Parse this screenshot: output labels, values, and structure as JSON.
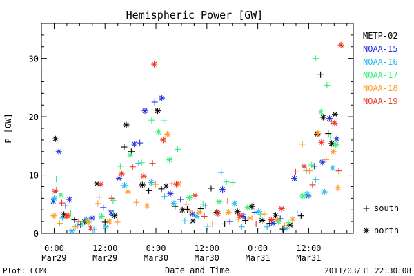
{
  "chart_data": {
    "type": "scatter",
    "title": "Hemispheric Power [GW]",
    "xlabel": "Date and Time",
    "ylabel": "P [GW]",
    "ylim": [
      0,
      36
    ],
    "xlim": [
      "2011-03-28 21:00",
      "2011-03-31 22:30"
    ],
    "y_ticks": [
      0,
      10,
      20,
      30
    ],
    "x_ticks": [
      {
        "top": "0:00",
        "bottom": "Mar29",
        "t": 3
      },
      {
        "top": "12:00",
        "bottom": "Mar29",
        "t": 15
      },
      {
        "top": "0:00",
        "bottom": "Mar30",
        "t": 27
      },
      {
        "top": "12:00",
        "bottom": "Mar30",
        "t": 39
      },
      {
        "top": "0:00",
        "bottom": "Mar31",
        "t": 51
      },
      {
        "top": "12:00",
        "bottom": "Mar31",
        "t": 63
      }
    ],
    "x_units": "hours since 2011-03-28 21:00",
    "grid": false,
    "legend": {
      "placement": "right",
      "satellites": [
        "METP-02",
        "NOAA-15",
        "NOAA-16",
        "NOAA-17",
        "NOAA-18",
        "NOAA-19"
      ],
      "symbols": [
        {
          "marker": "plus",
          "label": "south"
        },
        {
          "marker": "asterisk",
          "label": "north"
        }
      ]
    },
    "series": [
      {
        "name": "METP-02",
        "color": "#000000",
        "points": [
          {
            "x": 3.3,
            "y": 16.2,
            "m": "n"
          },
          {
            "x": 3.6,
            "y": 7.4,
            "m": "s"
          },
          {
            "x": 5.3,
            "y": 3.2,
            "m": "n"
          },
          {
            "x": 7.8,
            "y": 2.3,
            "m": "s"
          },
          {
            "x": 10.2,
            "y": 2.0,
            "m": "n"
          },
          {
            "x": 13.1,
            "y": 8.5,
            "m": "n"
          },
          {
            "x": 15.0,
            "y": 1.9,
            "m": "s"
          },
          {
            "x": 17.2,
            "y": 3.0,
            "m": "n"
          },
          {
            "x": 19.5,
            "y": 14.8,
            "m": "s"
          },
          {
            "x": 20.0,
            "y": 18.6,
            "m": "n"
          },
          {
            "x": 21.2,
            "y": 14.0,
            "m": "s"
          },
          {
            "x": 23.8,
            "y": 8.3,
            "m": "n"
          },
          {
            "x": 25.3,
            "y": 7.3,
            "m": "s"
          },
          {
            "x": 27.4,
            "y": 21.0,
            "m": "n"
          },
          {
            "x": 28.3,
            "y": 7.6,
            "m": "s"
          },
          {
            "x": 29.4,
            "y": 8.1,
            "m": "n"
          },
          {
            "x": 31.5,
            "y": 4.6,
            "m": "s"
          },
          {
            "x": 33.2,
            "y": 4.0,
            "m": "n"
          },
          {
            "x": 34.4,
            "y": 4.1,
            "m": "s"
          },
          {
            "x": 35.7,
            "y": 2.1,
            "m": "n"
          },
          {
            "x": 37.6,
            "y": 4.2,
            "m": "s"
          },
          {
            "x": 40.0,
            "y": 7.7,
            "m": "s"
          },
          {
            "x": 41.3,
            "y": 3.6,
            "m": "n"
          },
          {
            "x": 43.2,
            "y": 1.6,
            "m": "s"
          },
          {
            "x": 46.2,
            "y": 3.7,
            "m": "n"
          },
          {
            "x": 48.1,
            "y": 2.2,
            "m": "s"
          },
          {
            "x": 49.6,
            "y": 4.6,
            "m": "n"
          },
          {
            "x": 52.0,
            "y": 2.2,
            "m": "n"
          },
          {
            "x": 53.8,
            "y": 1.7,
            "m": "s"
          },
          {
            "x": 55.2,
            "y": 3.1,
            "m": "n"
          },
          {
            "x": 56.9,
            "y": 0.7,
            "m": "s"
          },
          {
            "x": 58.6,
            "y": 1.4,
            "m": "n"
          },
          {
            "x": 61.2,
            "y": 3.0,
            "m": "s"
          },
          {
            "x": 62.4,
            "y": 10.8,
            "m": "s"
          },
          {
            "x": 65.0,
            "y": 17.0,
            "m": "n"
          },
          {
            "x": 65.8,
            "y": 27.2,
            "m": "s"
          },
          {
            "x": 66.4,
            "y": 19.9,
            "m": "n"
          },
          {
            "x": 67.6,
            "y": 17.1,
            "m": "s"
          },
          {
            "x": 68.4,
            "y": 15.4,
            "m": "n"
          },
          {
            "x": 69.2,
            "y": 20.4,
            "m": "n"
          }
        ]
      },
      {
        "name": "NOAA-15",
        "color": "#2233dd",
        "points": [
          {
            "x": 2.8,
            "y": 5.5,
            "m": "n"
          },
          {
            "x": 4.1,
            "y": 14.0,
            "m": "n"
          },
          {
            "x": 5.7,
            "y": 4.7,
            "m": "s"
          },
          {
            "x": 6.6,
            "y": 5.8,
            "m": "n"
          },
          {
            "x": 9.2,
            "y": 1.5,
            "m": "s"
          },
          {
            "x": 11.9,
            "y": 2.6,
            "m": "n"
          },
          {
            "x": 14.6,
            "y": 4.4,
            "m": "s"
          },
          {
            "x": 16.4,
            "y": 3.5,
            "m": "n"
          },
          {
            "x": 18.3,
            "y": 9.4,
            "m": "n"
          },
          {
            "x": 21.9,
            "y": 15.3,
            "m": "n"
          },
          {
            "x": 23.2,
            "y": 15.5,
            "m": "s"
          },
          {
            "x": 24.4,
            "y": 21.0,
            "m": "n"
          },
          {
            "x": 26.7,
            "y": 22.5,
            "m": "s"
          },
          {
            "x": 28.4,
            "y": 23.2,
            "m": "n"
          },
          {
            "x": 30.4,
            "y": 6.8,
            "m": "n"
          },
          {
            "x": 32.8,
            "y": 5.8,
            "m": "s"
          },
          {
            "x": 35.6,
            "y": 3.3,
            "m": "n"
          },
          {
            "x": 38.7,
            "y": 4.7,
            "m": "s"
          },
          {
            "x": 42.7,
            "y": 7.5,
            "m": "n"
          },
          {
            "x": 44.4,
            "y": 2.0,
            "m": "s"
          },
          {
            "x": 47.5,
            "y": 2.9,
            "m": "n"
          },
          {
            "x": 50.3,
            "y": 3.6,
            "m": "s"
          },
          {
            "x": 54.6,
            "y": 1.7,
            "m": "n"
          },
          {
            "x": 56.3,
            "y": 2.5,
            "m": "s"
          },
          {
            "x": 59.6,
            "y": 9.4,
            "m": "n"
          },
          {
            "x": 62.9,
            "y": 6.4,
            "m": "n"
          },
          {
            "x": 64.3,
            "y": 11.5,
            "m": "s"
          },
          {
            "x": 66.2,
            "y": 12.2,
            "m": "n"
          },
          {
            "x": 67.9,
            "y": 19.7,
            "m": "n"
          },
          {
            "x": 69.6,
            "y": 16.2,
            "m": "n"
          }
        ]
      },
      {
        "name": "NOAA-16",
        "color": "#22bbee",
        "points": [
          {
            "x": 3.0,
            "y": 6.0,
            "m": "n"
          },
          {
            "x": 5.0,
            "y": 2.6,
            "m": "s"
          },
          {
            "x": 7.2,
            "y": 0.4,
            "m": "n"
          },
          {
            "x": 8.5,
            "y": 1.3,
            "m": "s"
          },
          {
            "x": 10.6,
            "y": 2.4,
            "m": "n"
          },
          {
            "x": 12.4,
            "y": 0.6,
            "m": "s"
          },
          {
            "x": 15.2,
            "y": 1.1,
            "m": "n"
          },
          {
            "x": 17.0,
            "y": 3.5,
            "m": "s"
          },
          {
            "x": 19.6,
            "y": 8.2,
            "m": "n"
          },
          {
            "x": 22.9,
            "y": 12.0,
            "m": "s"
          },
          {
            "x": 25.9,
            "y": 8.7,
            "m": "n"
          },
          {
            "x": 29.0,
            "y": 6.3,
            "m": "s"
          },
          {
            "x": 31.2,
            "y": 5.1,
            "m": "n"
          },
          {
            "x": 33.8,
            "y": 2.1,
            "m": "s"
          },
          {
            "x": 36.6,
            "y": 2.9,
            "m": "n"
          },
          {
            "x": 39.2,
            "y": 1.2,
            "m": "s"
          },
          {
            "x": 42.4,
            "y": 10.4,
            "m": "s"
          },
          {
            "x": 45.5,
            "y": 5.1,
            "m": "n"
          },
          {
            "x": 47.2,
            "y": 1.1,
            "m": "s"
          },
          {
            "x": 51.2,
            "y": 3.7,
            "m": "n"
          },
          {
            "x": 53.2,
            "y": 1.1,
            "m": "s"
          },
          {
            "x": 57.7,
            "y": 0.8,
            "m": "n"
          },
          {
            "x": 60.3,
            "y": 3.5,
            "m": "s"
          },
          {
            "x": 62.6,
            "y": 6.7,
            "m": "n"
          },
          {
            "x": 64.6,
            "y": 9.2,
            "m": "s"
          },
          {
            "x": 66.7,
            "y": 7.1,
            "m": "n"
          },
          {
            "x": 68.6,
            "y": 11.2,
            "m": "n"
          }
        ]
      },
      {
        "name": "NOAA-17",
        "color": "#33ee77",
        "points": [
          {
            "x": 3.5,
            "y": 9.3,
            "m": "s"
          },
          {
            "x": 4.6,
            "y": 6.6,
            "m": "n"
          },
          {
            "x": 6.9,
            "y": 3.5,
            "m": "s"
          },
          {
            "x": 9.6,
            "y": 1.6,
            "m": "n"
          },
          {
            "x": 11.2,
            "y": 1.9,
            "m": "s"
          },
          {
            "x": 14.2,
            "y": 2.9,
            "m": "n"
          },
          {
            "x": 16.9,
            "y": 5.6,
            "m": "s"
          },
          {
            "x": 18.6,
            "y": 11.5,
            "m": "s"
          },
          {
            "x": 20.9,
            "y": 13.4,
            "m": "n"
          },
          {
            "x": 23.6,
            "y": 12.1,
            "m": "s"
          },
          {
            "x": 26.0,
            "y": 19.4,
            "m": "s"
          },
          {
            "x": 27.6,
            "y": 17.4,
            "m": "n"
          },
          {
            "x": 28.9,
            "y": 19.3,
            "m": "s"
          },
          {
            "x": 30.2,
            "y": 12.6,
            "m": "n"
          },
          {
            "x": 32.1,
            "y": 14.4,
            "m": "s"
          },
          {
            "x": 34.9,
            "y": 6.1,
            "m": "n"
          },
          {
            "x": 38.1,
            "y": 5.0,
            "m": "s"
          },
          {
            "x": 41.9,
            "y": 5.4,
            "m": "n"
          },
          {
            "x": 43.6,
            "y": 8.8,
            "m": "s"
          },
          {
            "x": 45.1,
            "y": 8.7,
            "m": "s"
          },
          {
            "x": 48.6,
            "y": 4.4,
            "m": "n"
          },
          {
            "x": 51.6,
            "y": 3.2,
            "m": "s"
          },
          {
            "x": 55.9,
            "y": 2.0,
            "m": "n"
          },
          {
            "x": 58.2,
            "y": 1.8,
            "m": "s"
          },
          {
            "x": 61.6,
            "y": 6.4,
            "m": "n"
          },
          {
            "x": 63.7,
            "y": 11.7,
            "m": "s"
          },
          {
            "x": 64.6,
            "y": 30.0,
            "m": "s"
          },
          {
            "x": 65.9,
            "y": 20.8,
            "m": "n"
          },
          {
            "x": 67.3,
            "y": 25.4,
            "m": "s"
          },
          {
            "x": 68.1,
            "y": 16.5,
            "m": "s"
          },
          {
            "x": 69.4,
            "y": 15.2,
            "m": "n"
          }
        ]
      },
      {
        "name": "NOAA-18",
        "color": "#ff9922",
        "points": [
          {
            "x": 2.9,
            "y": 3.0,
            "m": "n"
          },
          {
            "x": 4.3,
            "y": 1.7,
            "m": "s"
          },
          {
            "x": 6.2,
            "y": 2.9,
            "m": "n"
          },
          {
            "x": 8.0,
            "y": 1.1,
            "m": "s"
          },
          {
            "x": 10.9,
            "y": 2.0,
            "m": "n"
          },
          {
            "x": 13.3,
            "y": 5.1,
            "m": "s"
          },
          {
            "x": 16.0,
            "y": 2.0,
            "m": "n"
          },
          {
            "x": 17.9,
            "y": 1.9,
            "m": "s"
          },
          {
            "x": 20.4,
            "y": 7.1,
            "m": "n"
          },
          {
            "x": 22.4,
            "y": 5.3,
            "m": "s"
          },
          {
            "x": 24.9,
            "y": 4.7,
            "m": "n"
          },
          {
            "x": 26.9,
            "y": 8.4,
            "m": "s"
          },
          {
            "x": 29.7,
            "y": 17.0,
            "m": "n"
          },
          {
            "x": 32.4,
            "y": 8.5,
            "m": "n"
          },
          {
            "x": 35.0,
            "y": 3.8,
            "m": "s"
          },
          {
            "x": 37.2,
            "y": 3.6,
            "m": "n"
          },
          {
            "x": 40.3,
            "y": 1.6,
            "m": "s"
          },
          {
            "x": 44.1,
            "y": 3.6,
            "m": "n"
          },
          {
            "x": 46.4,
            "y": 2.4,
            "m": "s"
          },
          {
            "x": 49.2,
            "y": 2.6,
            "m": "n"
          },
          {
            "x": 52.5,
            "y": 3.3,
            "m": "s"
          },
          {
            "x": 55.5,
            "y": 2.3,
            "m": "n"
          },
          {
            "x": 57.3,
            "y": 1.3,
            "m": "s"
          },
          {
            "x": 59.2,
            "y": 2.4,
            "m": "n"
          },
          {
            "x": 61.5,
            "y": 15.3,
            "m": "s"
          },
          {
            "x": 63.2,
            "y": 10.7,
            "m": "s"
          },
          {
            "x": 65.2,
            "y": 17.1,
            "m": "n"
          },
          {
            "x": 67.1,
            "y": 12.6,
            "m": "s"
          },
          {
            "x": 68.8,
            "y": 14.0,
            "m": "n"
          },
          {
            "x": 69.9,
            "y": 7.8,
            "m": "n"
          }
        ]
      },
      {
        "name": "NOAA-19",
        "color": "#ee3322",
        "points": [
          {
            "x": 3.2,
            "y": 7.2,
            "m": "n"
          },
          {
            "x": 4.8,
            "y": 5.2,
            "m": "s"
          },
          {
            "x": 6.0,
            "y": 3.0,
            "m": "n"
          },
          {
            "x": 8.8,
            "y": 2.0,
            "m": "s"
          },
          {
            "x": 11.6,
            "y": 0.9,
            "m": "n"
          },
          {
            "x": 13.6,
            "y": 6.2,
            "m": "s"
          },
          {
            "x": 14.0,
            "y": 8.4,
            "m": "n"
          },
          {
            "x": 16.6,
            "y": 6.0,
            "m": "s"
          },
          {
            "x": 18.9,
            "y": 10.2,
            "m": "n"
          },
          {
            "x": 21.5,
            "y": 11.4,
            "m": "s"
          },
          {
            "x": 24.1,
            "y": 9.8,
            "m": "n"
          },
          {
            "x": 26.2,
            "y": 12.0,
            "m": "s"
          },
          {
            "x": 26.6,
            "y": 29.0,
            "m": "n"
          },
          {
            "x": 28.7,
            "y": 16.0,
            "m": "n"
          },
          {
            "x": 30.8,
            "y": 8.5,
            "m": "s"
          },
          {
            "x": 31.8,
            "y": 8.4,
            "m": "n"
          },
          {
            "x": 34.1,
            "y": 5.0,
            "m": "s"
          },
          {
            "x": 36.2,
            "y": 6.5,
            "m": "n"
          },
          {
            "x": 38.4,
            "y": 2.9,
            "m": "s"
          },
          {
            "x": 41.6,
            "y": 3.4,
            "m": "n"
          },
          {
            "x": 43.9,
            "y": 5.5,
            "m": "s"
          },
          {
            "x": 46.8,
            "y": 3.0,
            "m": "n"
          },
          {
            "x": 50.6,
            "y": 1.6,
            "m": "s"
          },
          {
            "x": 54.2,
            "y": 2.3,
            "m": "n"
          },
          {
            "x": 56.6,
            "y": 4.2,
            "m": "n"
          },
          {
            "x": 59.9,
            "y": 10.5,
            "m": "s"
          },
          {
            "x": 61.9,
            "y": 11.5,
            "m": "n"
          },
          {
            "x": 63.9,
            "y": 8.3,
            "m": "s"
          },
          {
            "x": 66.0,
            "y": 15.6,
            "m": "n"
          },
          {
            "x": 68.3,
            "y": 19.2,
            "m": "s"
          },
          {
            "x": 69.1,
            "y": 18.9,
            "m": "n"
          },
          {
            "x": 70.1,
            "y": 10.7,
            "m": "s"
          },
          {
            "x": 70.6,
            "y": 32.3,
            "m": "n"
          }
        ]
      }
    ]
  },
  "footer": {
    "left": "Plot: CCMC",
    "right": "2011/03/31 22:30:08"
  }
}
